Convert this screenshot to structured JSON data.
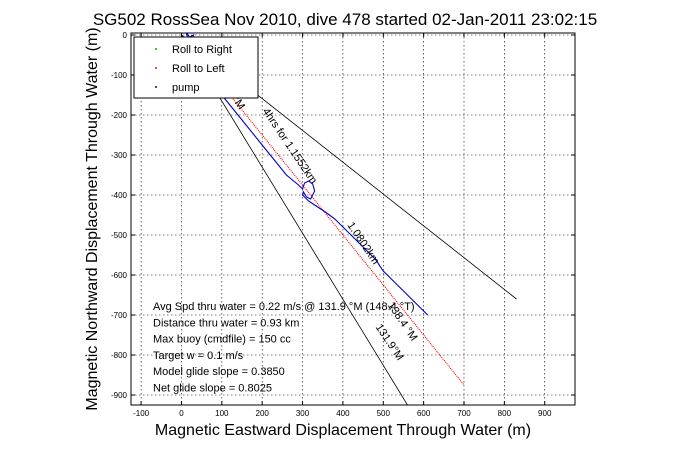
{
  "chart_data": {
    "type": "line",
    "title": "SG502 RossSea Nov 2010, dive 478 started 02-Jan-2011 23:02:15",
    "xlabel": "Magnetic Eastward Displacement Through Water (m)",
    "ylabel": "Magnetic Northward Displacement Through Water (m)",
    "xlim": [
      -125,
      975
    ],
    "ylim": [
      -925,
      5
    ],
    "x_ticks": [
      -100,
      0,
      100,
      200,
      300,
      400,
      500,
      600,
      700,
      800,
      900
    ],
    "y_ticks": [
      0,
      -100,
      -200,
      -300,
      -400,
      -500,
      -600,
      -700,
      -800,
      -900
    ],
    "grid": true,
    "legend_position": "top-left",
    "legend": [
      "Roll to Right",
      "Roll to Left",
      "pump"
    ],
    "series": [
      {
        "name": "Roll to Left",
        "color": "#ff0000",
        "x": [
          0,
          20,
          40,
          60,
          80,
          100,
          120,
          140,
          160,
          180,
          200,
          220,
          240,
          260,
          280,
          300,
          320,
          340,
          360,
          380,
          400,
          420,
          440,
          460,
          480,
          500,
          520,
          540,
          560,
          580,
          600,
          620,
          640,
          660,
          680,
          700
        ],
        "y": [
          0,
          -25,
          -50,
          -75,
          -100,
          -125,
          -150,
          -175,
          -200,
          -225,
          -250,
          -275,
          -300,
          -325,
          -350,
          -375,
          -400,
          -425,
          -450,
          -475,
          -500,
          -525,
          -550,
          -575,
          -600,
          -625,
          -650,
          -675,
          -700,
          -725,
          -750,
          -775,
          -800,
          -825,
          -850,
          -875
        ]
      },
      {
        "name": "pump",
        "color": "#0000cc",
        "x": [
          0,
          5,
          15,
          10,
          20,
          30,
          25,
          30,
          50,
          80,
          100,
          140,
          180,
          220,
          260,
          290,
          300,
          305,
          315,
          325,
          330,
          320,
          310,
          302,
          300,
          315,
          330,
          345,
          360,
          380,
          400,
          420,
          440,
          460,
          480,
          500,
          520,
          540,
          560,
          580,
          600,
          610
        ],
        "y": [
          0,
          -10,
          -5,
          10,
          -5,
          0,
          -20,
          -50,
          -80,
          -120,
          -150,
          -200,
          -250,
          -300,
          -350,
          -375,
          -385,
          -370,
          -365,
          -372,
          -390,
          -410,
          -405,
          -392,
          -400,
          -415,
          -425,
          -435,
          -445,
          -460,
          -480,
          -500,
          -520,
          -540,
          -560,
          -590,
          -610,
          -630,
          -650,
          -670,
          -690,
          -700
        ]
      },
      {
        "name": "Roll to Right",
        "color": "#00aa00",
        "x": [],
        "y": []
      }
    ],
    "bearing_lines": [
      {
        "x": [
          0,
          560
        ],
        "y": [
          0,
          -925
        ]
      },
      {
        "x": [
          0,
          830
        ],
        "y": [
          0,
          -660
        ]
      }
    ],
    "annotations": [
      {
        "text": "4hrs for 1.1552km",
        "x": 200,
        "y": -190
      },
      {
        "text": "1.0802km",
        "x": 410,
        "y": -475
      },
      {
        "text": "138.4 °M",
        "x": 510,
        "y": -675
      },
      {
        "text": "131.9°M",
        "x": 480,
        "y": -730
      },
      {
        "text": "°M",
        "x": 125,
        "y": -160
      }
    ],
    "stats": [
      "Avg Spd thru water =  0.22 m/s @ 131.9 °M (148.4 °T)",
      "Distance thru water =  0.93 km",
      "Max buoy (cmdfile) = 150 cc",
      "Target w = 0.1 m/s",
      "Model glide slope = 0.3850",
      "Net glide slope = 0.8025"
    ]
  }
}
